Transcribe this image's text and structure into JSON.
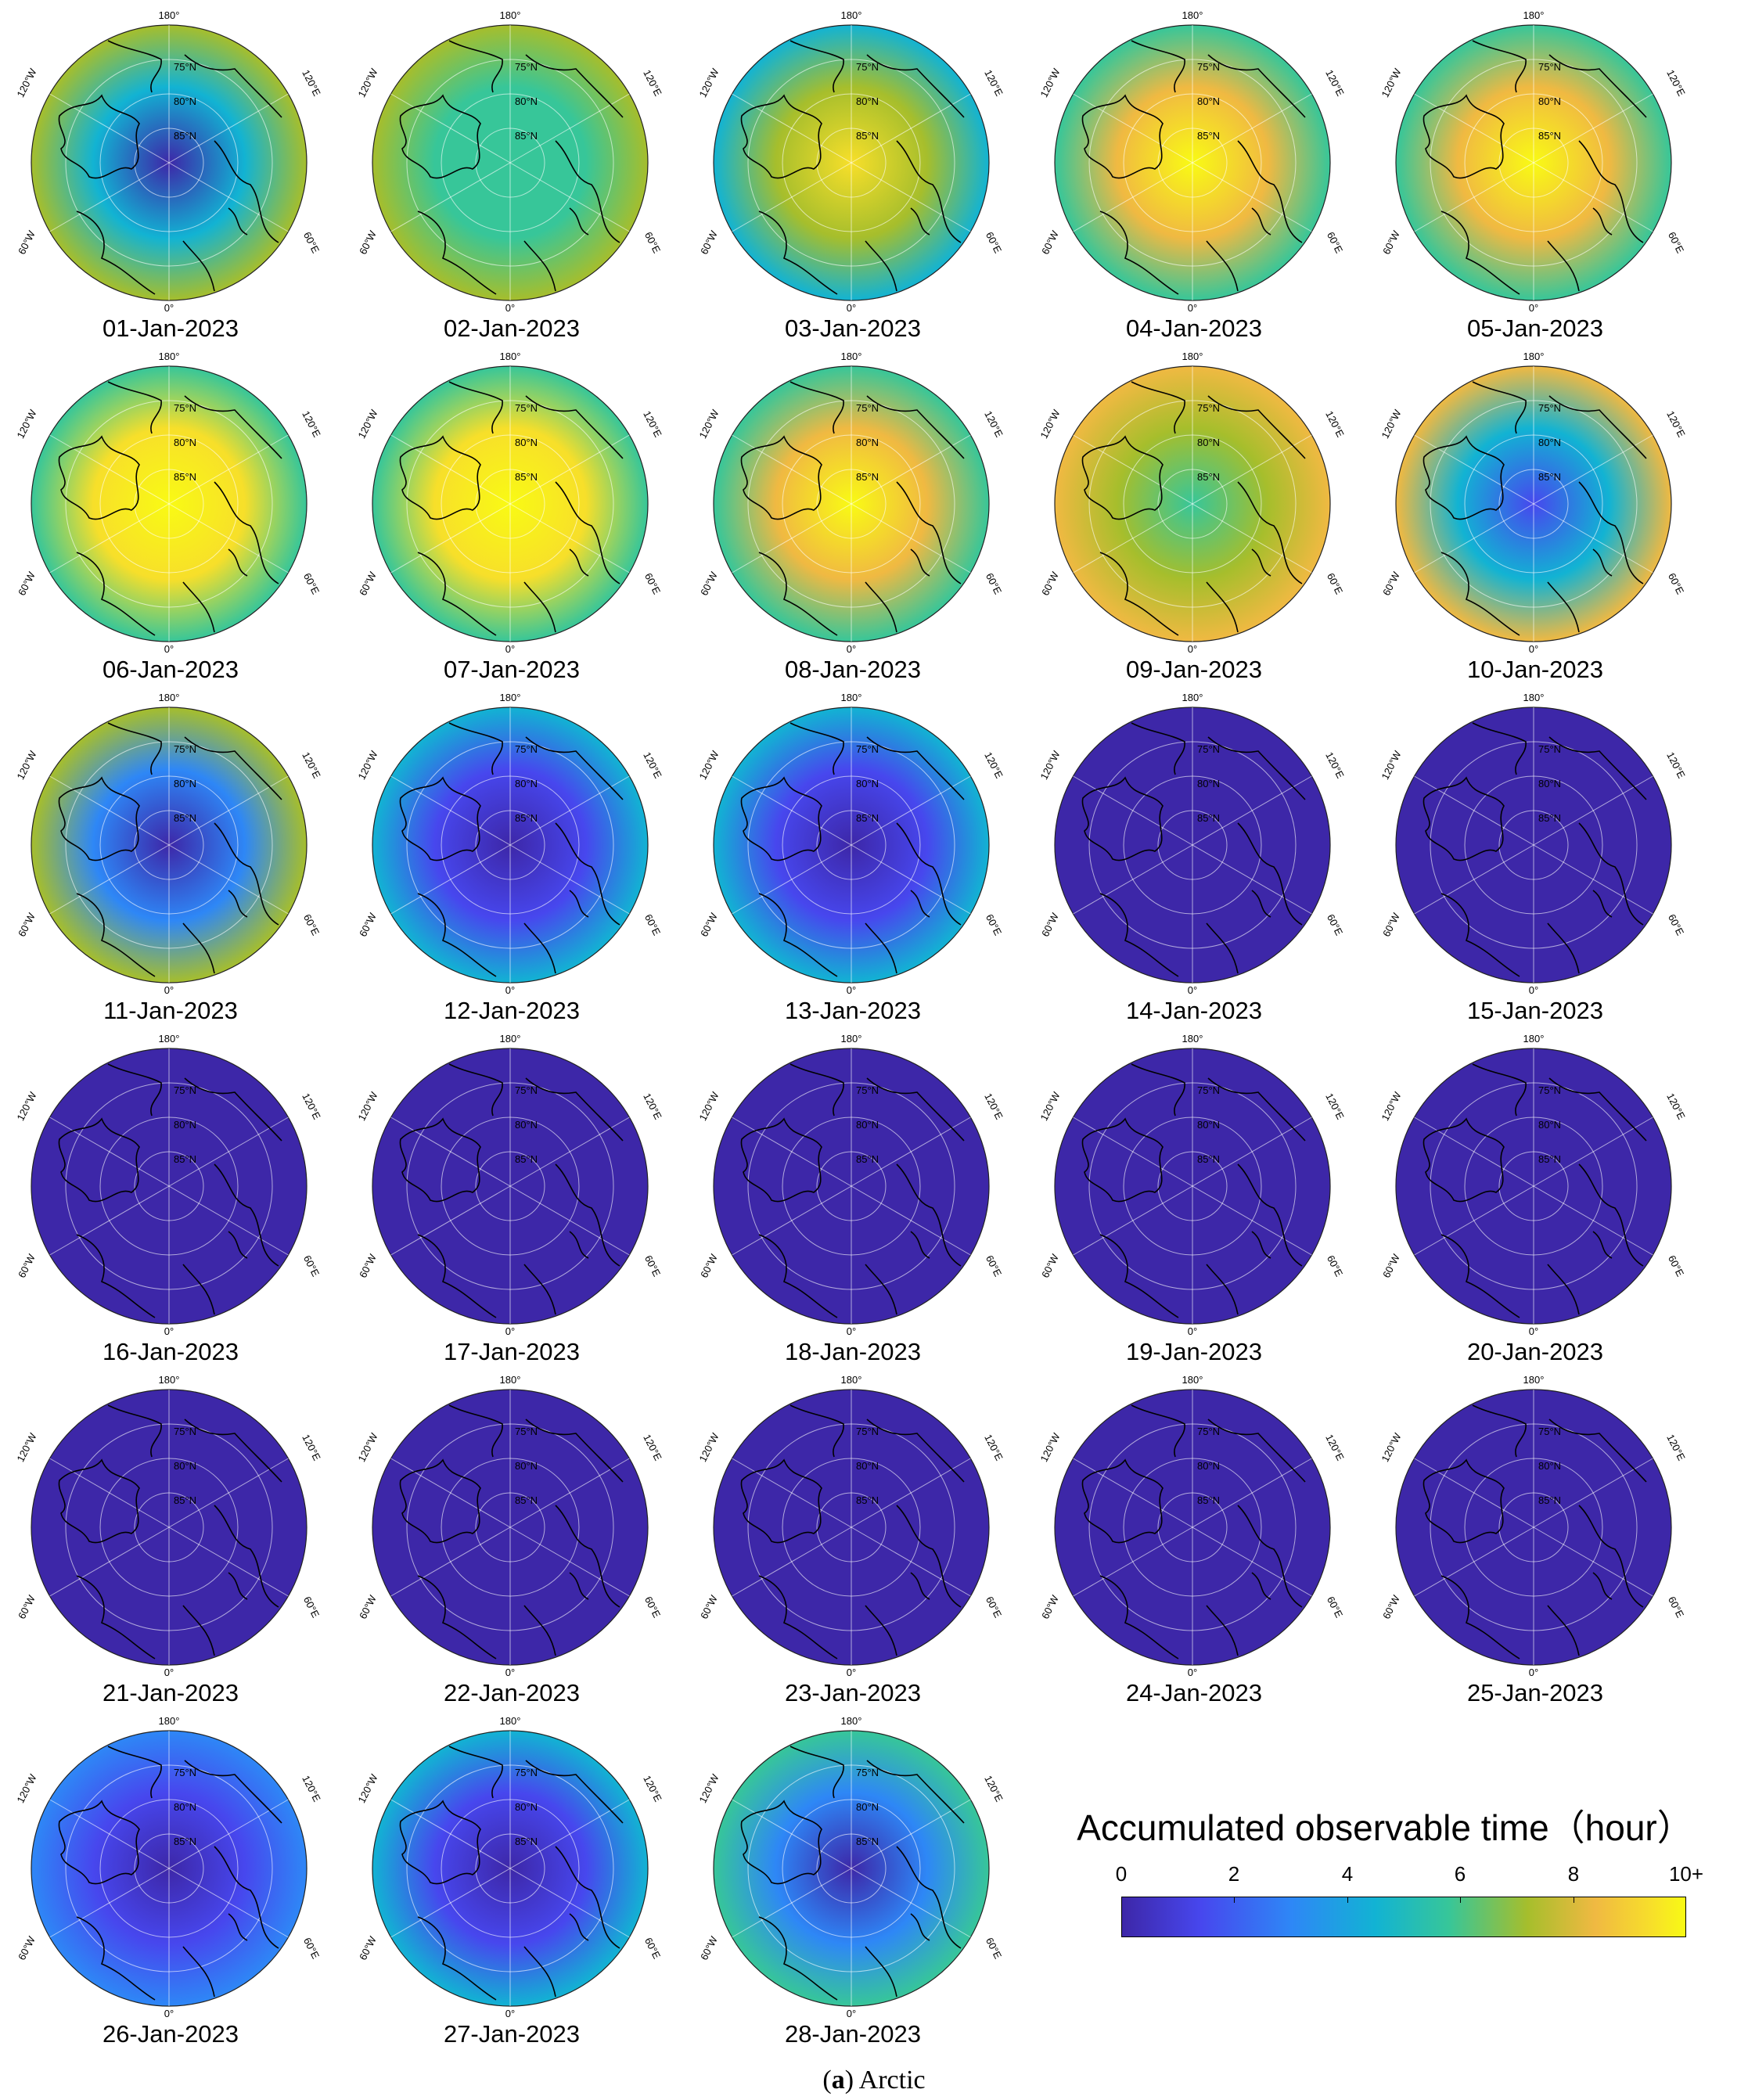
{
  "figure": {
    "caption_label": "a",
    "caption_text": "Arctic"
  },
  "map_axes": {
    "longitude_labels": [
      "180°",
      "120°E",
      "60°E",
      "0°",
      "60°W",
      "120°W"
    ],
    "latitude_labels": [
      "75°N",
      "80°N",
      "85°N"
    ]
  },
  "colorbar": {
    "title": "Accumulated observable time（hour）",
    "ticks": [
      "0",
      "2",
      "4",
      "6",
      "8",
      "10+"
    ],
    "tick_values": [
      0,
      2,
      4,
      6,
      8,
      10
    ],
    "range": [
      0,
      10
    ],
    "colors": [
      "#3d27a8",
      "#4747ee",
      "#2e87f6",
      "#12b3d3",
      "#37c699",
      "#a6be2c",
      "#f0b942",
      "#f7df2a",
      "#f9fa14"
    ]
  },
  "panels": [
    {
      "date": "01-Jan-2023",
      "level": 5.5,
      "pattern": "ring-high"
    },
    {
      "date": "02-Jan-2023",
      "level": 6.5,
      "pattern": "mixed"
    },
    {
      "date": "03-Jan-2023",
      "level": 7.5,
      "pattern": "center-high"
    },
    {
      "date": "04-Jan-2023",
      "level": 8.5,
      "pattern": "center-high"
    },
    {
      "date": "05-Jan-2023",
      "level": 9,
      "pattern": "center-high"
    },
    {
      "date": "06-Jan-2023",
      "level": 9.5,
      "pattern": "center-high"
    },
    {
      "date": "07-Jan-2023",
      "level": 9.5,
      "pattern": "center-high"
    },
    {
      "date": "08-Jan-2023",
      "level": 8.5,
      "pattern": "center-high"
    },
    {
      "date": "09-Jan-2023",
      "level": 7,
      "pattern": "mixed"
    },
    {
      "date": "10-Jan-2023",
      "level": 6,
      "pattern": "ring-high"
    },
    {
      "date": "11-Jan-2023",
      "level": 5,
      "pattern": "ring-high"
    },
    {
      "date": "12-Jan-2023",
      "level": 3,
      "pattern": "ring-high"
    },
    {
      "date": "13-Jan-2023",
      "level": 1.5,
      "pattern": "edge"
    },
    {
      "date": "14-Jan-2023",
      "level": 0,
      "pattern": "flat"
    },
    {
      "date": "15-Jan-2023",
      "level": 0,
      "pattern": "flat"
    },
    {
      "date": "16-Jan-2023",
      "level": 0,
      "pattern": "flat"
    },
    {
      "date": "17-Jan-2023",
      "level": 0,
      "pattern": "flat"
    },
    {
      "date": "18-Jan-2023",
      "level": 0,
      "pattern": "flat"
    },
    {
      "date": "19-Jan-2023",
      "level": 0,
      "pattern": "flat"
    },
    {
      "date": "20-Jan-2023",
      "level": 0,
      "pattern": "flat"
    },
    {
      "date": "21-Jan-2023",
      "level": 0,
      "pattern": "flat"
    },
    {
      "date": "22-Jan-2023",
      "level": 0,
      "pattern": "flat"
    },
    {
      "date": "23-Jan-2023",
      "level": 0,
      "pattern": "flat"
    },
    {
      "date": "24-Jan-2023",
      "level": 0,
      "pattern": "flat"
    },
    {
      "date": "25-Jan-2023",
      "level": 0,
      "pattern": "flat"
    },
    {
      "date": "26-Jan-2023",
      "level": 1,
      "pattern": "edge"
    },
    {
      "date": "27-Jan-2023",
      "level": 3,
      "pattern": "ring-high"
    },
    {
      "date": "28-Jan-2023",
      "level": 4.5,
      "pattern": "ring-high"
    }
  ]
}
